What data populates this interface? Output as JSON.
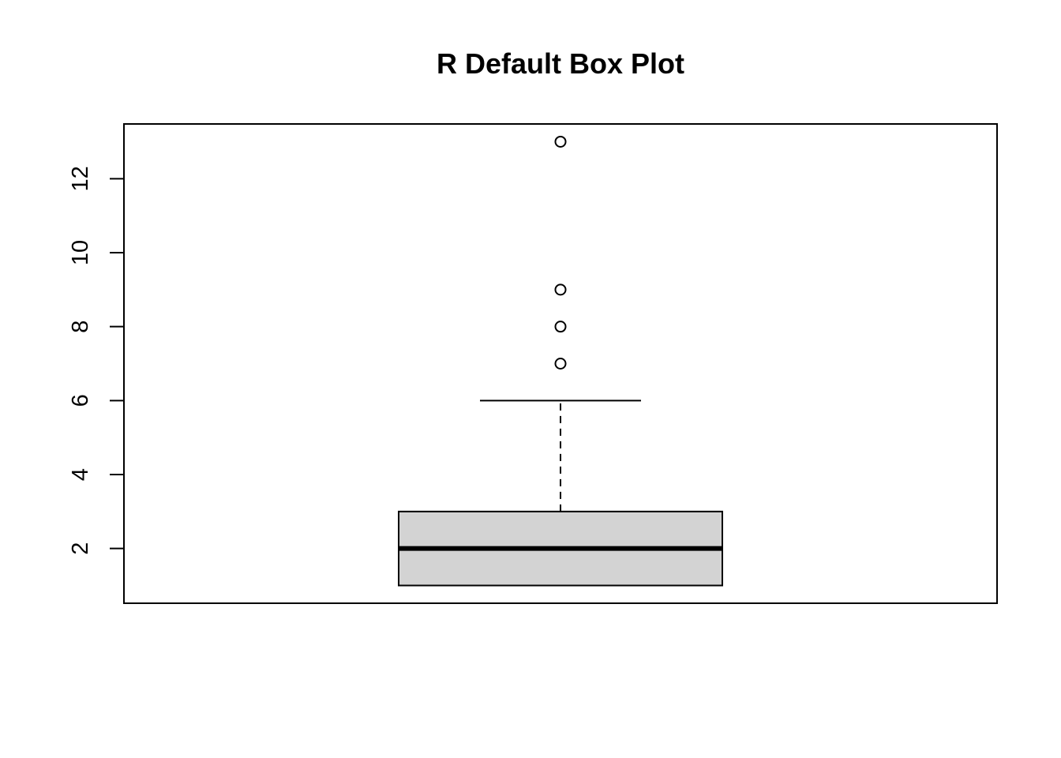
{
  "chart_data": {
    "type": "box",
    "title": "R Default Box Plot",
    "xlabel": "",
    "ylabel": "",
    "ylim": [
      0.52,
      13.48
    ],
    "y_ticks": [
      2,
      4,
      6,
      8,
      10,
      12
    ],
    "y_tick_labels": [
      "2",
      "4",
      "6",
      "8",
      "10",
      "12"
    ],
    "box": {
      "whisker_low": 1,
      "q1": 1,
      "median": 2,
      "q3": 3,
      "whisker_high": 6
    },
    "outliers": [
      7,
      8,
      9,
      13
    ],
    "box_fill": "#d3d3d3",
    "line_color": "#000000",
    "grid": false,
    "legend": "none"
  }
}
